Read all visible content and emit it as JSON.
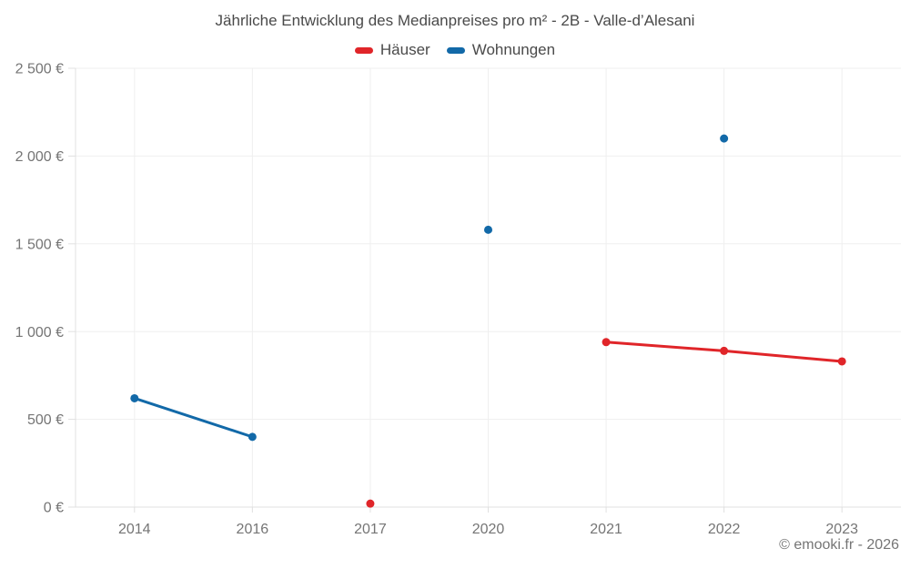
{
  "chart_data": {
    "type": "line",
    "title": "Jährliche Entwicklung des Medianpreises pro m² - 2B - Valle-d’Alesani",
    "categories": [
      "2014",
      "2016",
      "2017",
      "2020",
      "2021",
      "2022",
      "2023"
    ],
    "series": [
      {
        "name": "Häuser",
        "color": "#e02529",
        "values": [
          null,
          null,
          20,
          null,
          940,
          890,
          830
        ]
      },
      {
        "name": "Wohnungen",
        "color": "#1269a8",
        "values": [
          620,
          400,
          null,
          1580,
          null,
          2100,
          null
        ]
      }
    ],
    "ylim": [
      0,
      2500
    ],
    "ytick_step": 500,
    "ytick_suffix": " €",
    "xlabel": "",
    "ylabel": "",
    "grid": true,
    "span_gaps": false,
    "legend_position": "top",
    "grid_color": "#efefef",
    "axis_color": "#e0e0e0",
    "tick_label_color": "#757575",
    "title_color": "#4a4a4a"
  },
  "footer": {
    "copyright": "© emooki.fr - 2026"
  }
}
